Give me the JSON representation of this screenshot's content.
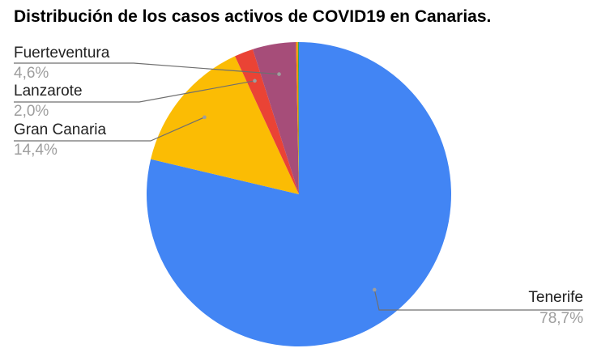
{
  "chart_data": {
    "type": "pie",
    "title": "Distribución de los casos activos de COVID19 en Canarias.",
    "slices": [
      {
        "label": "Tenerife",
        "value": 78.7,
        "display": "78,7%",
        "color": "#4285f4"
      },
      {
        "label": "Gran Canaria",
        "value": 14.4,
        "display": "14,4%",
        "color": "#fbbc04"
      },
      {
        "label": "Lanzarote",
        "value": 2.0,
        "display": "2,0%",
        "color": "#ea4335"
      },
      {
        "label": "Fuerteventura",
        "value": 4.6,
        "display": "4,6%",
        "color": "#a64d79"
      },
      {
        "label": "",
        "value": 0.2,
        "display": "",
        "color": "#ff9900"
      },
      {
        "label": "",
        "value": 0.1,
        "display": "",
        "color": "#34a853"
      }
    ],
    "start_angle_deg": 0,
    "direction": "clockwise",
    "legend": "none",
    "data_labels": "outside-with-leaders"
  }
}
